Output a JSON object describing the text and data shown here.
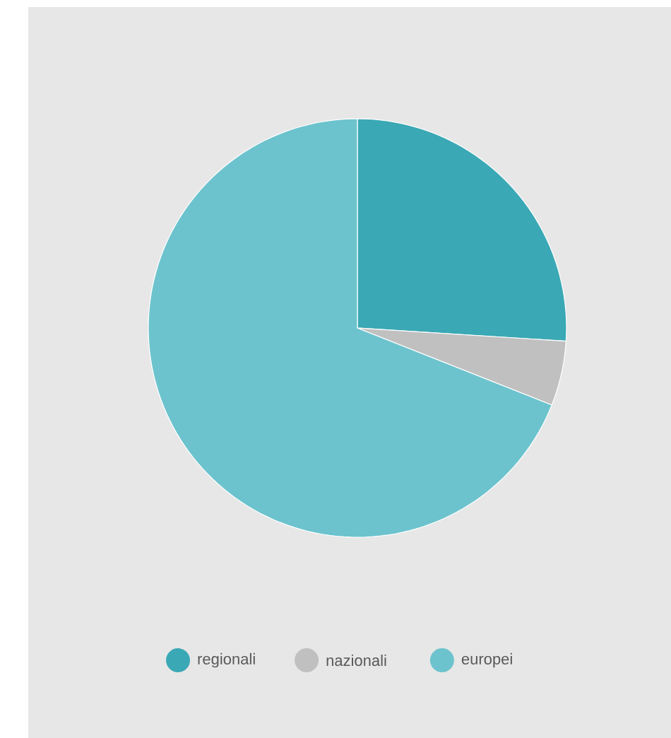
{
  "chart_data": {
    "type": "pie",
    "categories": [
      "regionali",
      "nazionali",
      "europei"
    ],
    "values": [
      26,
      5,
      69
    ],
    "colors": [
      "#3ba8b5",
      "#c0c0c0",
      "#6cc3cd"
    ],
    "legend": "bottom"
  }
}
